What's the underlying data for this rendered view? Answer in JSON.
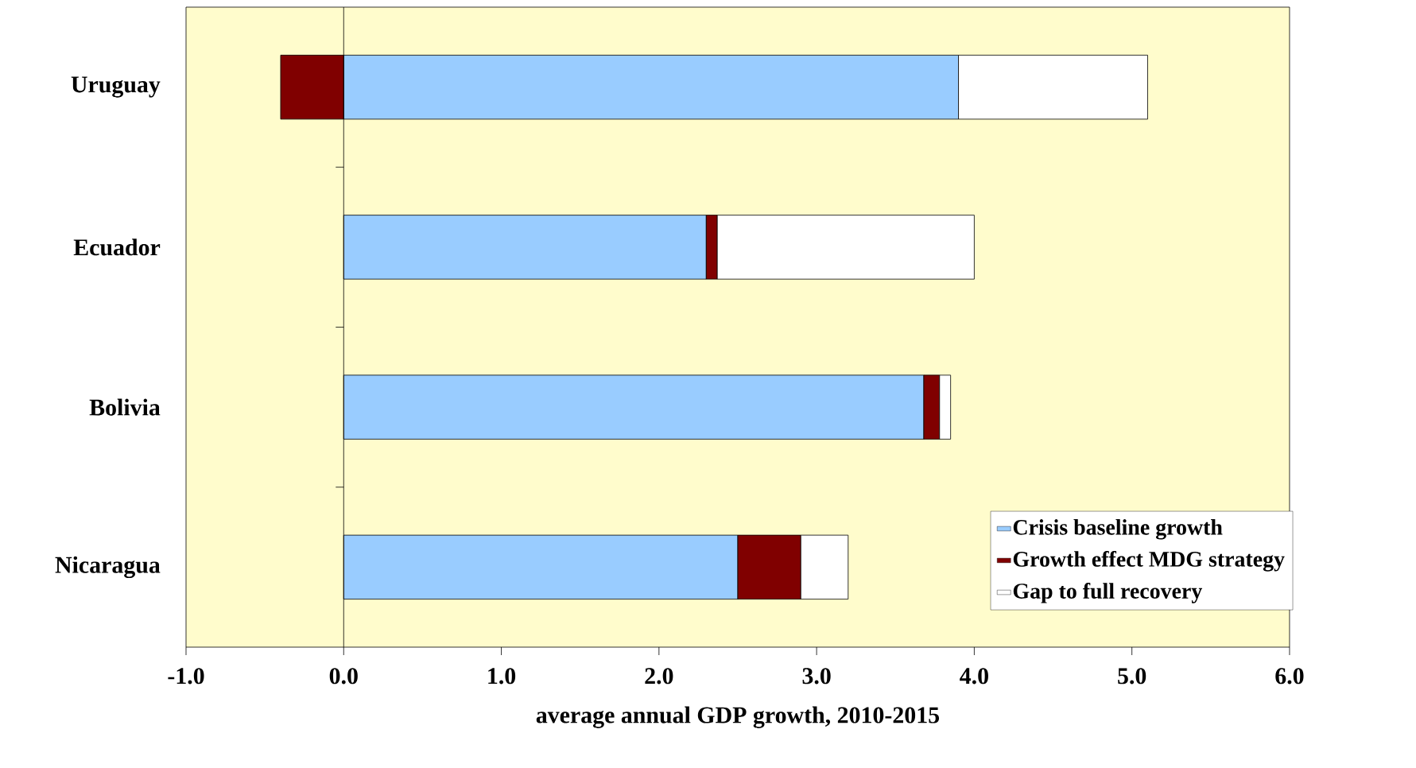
{
  "chart_data": {
    "type": "bar",
    "orientation": "horizontal",
    "stacked": true,
    "xlabel": "average annual GDP growth, 2010-2015",
    "categories": [
      "Uruguay",
      "Ecuador",
      "Bolivia",
      "Nicaragua"
    ],
    "series": [
      {
        "name": "Crisis baseline growth",
        "color": "#99ccff",
        "values": [
          3.9,
          2.3,
          3.68,
          2.5
        ]
      },
      {
        "name": "Growth effect MDG strategy",
        "color": "#800000",
        "values": [
          -0.4,
          0.07,
          0.1,
          0.4
        ]
      },
      {
        "name": "Gap to full recovery",
        "color": "#ffffff",
        "values": [
          1.2,
          1.63,
          0.07,
          0.3
        ]
      }
    ],
    "xlim": [
      -1,
      6
    ],
    "xticks": [
      {
        "value": -1,
        "label": "-1.0"
      },
      {
        "value": 0,
        "label": "0.0"
      },
      {
        "value": 1,
        "label": "1.0"
      },
      {
        "value": 2,
        "label": "2.0"
      },
      {
        "value": 3,
        "label": "3.0"
      },
      {
        "value": 4,
        "label": "4.0"
      },
      {
        "value": 5,
        "label": "5.0"
      },
      {
        "value": 6,
        "label": "6.0"
      }
    ],
    "legend": "bottom right"
  }
}
